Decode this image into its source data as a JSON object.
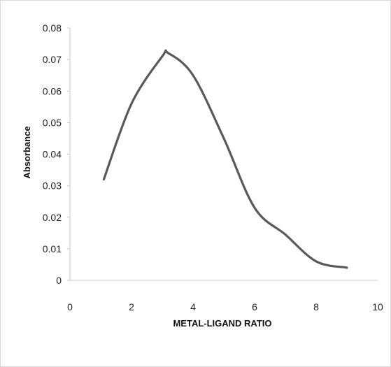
{
  "chart_data": {
    "type": "line",
    "xlabel": "METAL-LIGAND RATIO",
    "ylabel": "Absorbance",
    "xlim": [
      0,
      10
    ],
    "ylim": [
      0,
      0.08
    ],
    "xticks": [
      0,
      2,
      4,
      6,
      8,
      10
    ],
    "xtick_labels": [
      "0",
      "2",
      "4",
      "6",
      "8",
      "10"
    ],
    "yticks": [
      0,
      0.01,
      0.02,
      0.03,
      0.04,
      0.05,
      0.06,
      0.07,
      0.08
    ],
    "ytick_labels": [
      "0",
      "0.01",
      "0.02",
      "0.03",
      "0.04",
      "0.05",
      "0.06",
      "0.07",
      "0.08"
    ],
    "grid": false,
    "legend": "none",
    "series": [
      {
        "color": "#595959",
        "smooth": true,
        "x": [
          1.1,
          2,
          3,
          3.2,
          4,
          5,
          6,
          7,
          8,
          9
        ],
        "y": [
          0.032,
          0.056,
          0.071,
          0.072,
          0.065,
          0.045,
          0.023,
          0.0145,
          0.006,
          0.004
        ]
      }
    ]
  }
}
